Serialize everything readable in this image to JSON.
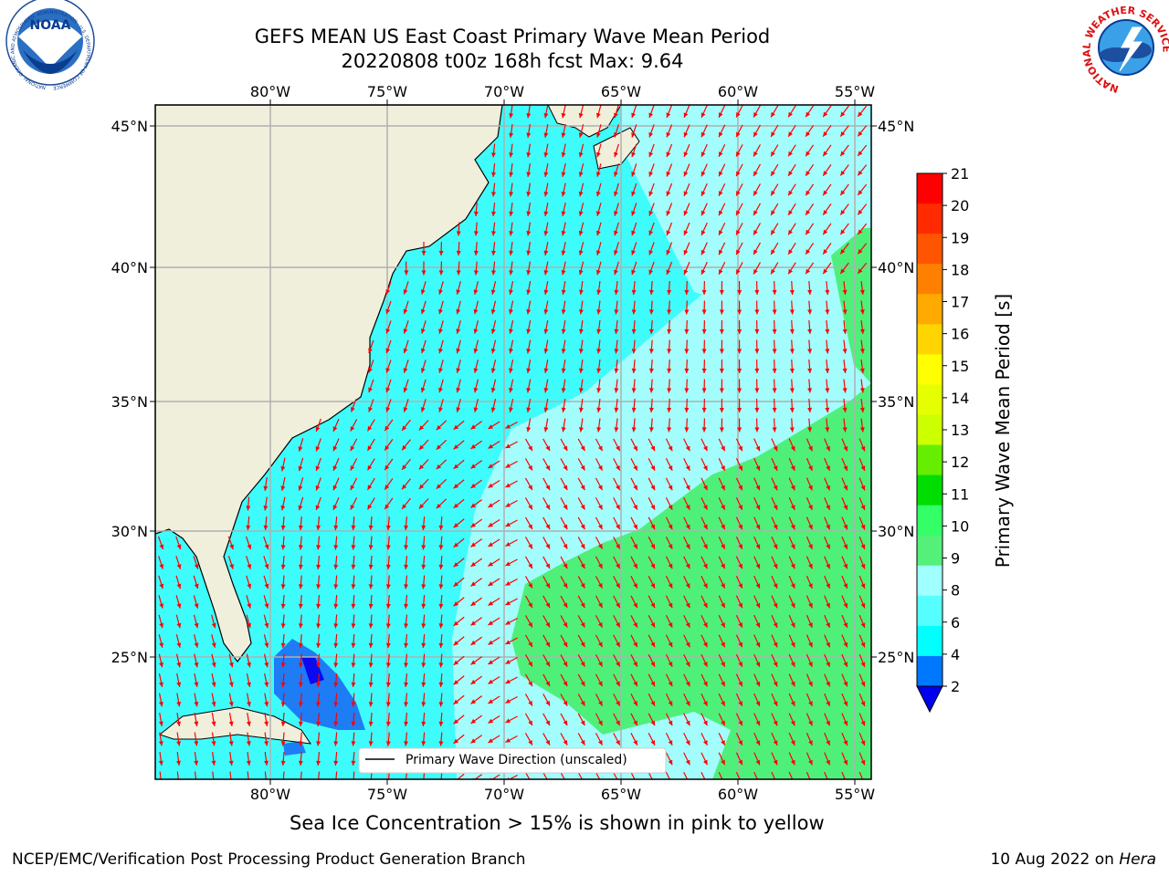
{
  "header": {
    "title_line1": "GEFS MEAN US East Coast Primary Wave Mean Period",
    "title_line2": "20220808 t00z 168h fcst   Max: 9.64"
  },
  "logos": {
    "left": "NOAA",
    "left_ring": "NATIONAL OCEANIC AND ATMOSPHERIC ADMINISTRATION · U.S. DEPARTMENT OF COMMERCE",
    "right_ring": "NATIONAL WEATHER SERVICE"
  },
  "map": {
    "lon_labels": [
      "80°W",
      "75°W",
      "70°W",
      "65°W",
      "60°W",
      "55°W"
    ],
    "lon_values": [
      -80,
      -75,
      -70,
      -65,
      -60,
      -55
    ],
    "lat_labels": [
      "45°N",
      "40°N",
      "35°N",
      "30°N",
      "25°N"
    ],
    "lat_values": [
      45,
      40,
      35,
      30,
      25
    ],
    "legend_label": "Primary Wave Direction (unscaled)",
    "arrow_color": "#ff0000"
  },
  "colorbar": {
    "label": "Primary Wave Mean Period [s]",
    "ticks": [
      "21",
      "20",
      "19",
      "18",
      "17",
      "16",
      "15",
      "14",
      "13",
      "12",
      "11",
      "10",
      "9",
      "8",
      "6",
      "4",
      "2"
    ],
    "colors_top_to_bottom": [
      "#ff0000",
      "#ff2a00",
      "#ff5500",
      "#ff8000",
      "#ffaa00",
      "#ffd400",
      "#ffff00",
      "#e6ff00",
      "#ccff00",
      "#66ee00",
      "#00dd00",
      "#33ff66",
      "#55f07a",
      "#a0ffff",
      "#55ffff",
      "#00ffff",
      "#0077ff"
    ],
    "under_color": "#0000ee"
  },
  "footer": {
    "note": "Sea Ice Concentration > 15% is shown in pink to yellow",
    "left": "NCEP/EMC/Verification Post Processing Product Generation Branch",
    "right_date": "10 Aug 2022 on",
    "right_host": "Hera"
  }
}
